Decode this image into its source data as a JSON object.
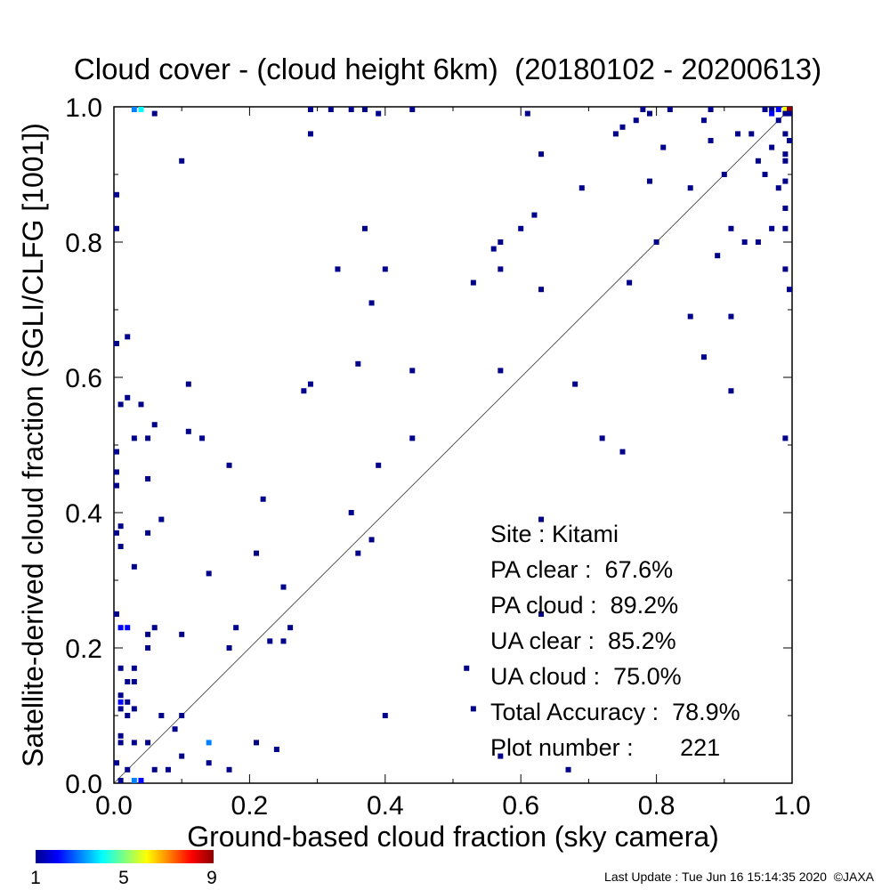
{
  "chart_data": {
    "type": "scatter",
    "title": "Cloud cover - (cloud height 6km)  (20180102 - 20200613)",
    "xlabel": "Ground-based cloud fraction (sky camera)",
    "ylabel": "Satellite-derived cloud fraction (SGLI/CLFG [1001])",
    "xlim": [
      0.0,
      1.0
    ],
    "ylim": [
      0.0,
      1.0
    ],
    "x_ticks": [
      "0.0",
      "0.2",
      "0.4",
      "0.6",
      "0.8",
      "1.0"
    ],
    "y_ticks": [
      "0.0",
      "0.2",
      "0.4",
      "0.6",
      "0.8",
      "1.0"
    ],
    "reference_line": "1:1 diagonal",
    "grid": false,
    "colorbar": {
      "min_label": "1",
      "mid_label": "5",
      "max_label": "9",
      "colors": [
        "#00008b",
        "#0000ff",
        "#0080ff",
        "#00ffff",
        "#80ff80",
        "#ffff00",
        "#ff8000",
        "#ff0000",
        "#8b0000"
      ]
    },
    "stats": [
      {
        "label": "Site : Kitami"
      },
      {
        "label": "PA clear :  67.6%"
      },
      {
        "label": "PA cloud :  89.2%"
      },
      {
        "label": "UA clear :  85.2%"
      },
      {
        "label": "UA cloud :  75.0%"
      },
      {
        "label": "Total Accuracy :  78.9%"
      },
      {
        "label": "Plot number :       221"
      }
    ],
    "points": [
      [
        0.03,
        1.0,
        3
      ],
      [
        0.04,
        1.0,
        4
      ],
      [
        0.06,
        0.99,
        1
      ],
      [
        0.29,
        1.0,
        1
      ],
      [
        0.32,
        1.0,
        1
      ],
      [
        0.35,
        1.0,
        1
      ],
      [
        0.37,
        1.0,
        1
      ],
      [
        0.39,
        0.99,
        1
      ],
      [
        0.44,
        1.0,
        1
      ],
      [
        0.61,
        0.99,
        1
      ],
      [
        0.75,
        0.97,
        1
      ],
      [
        0.77,
        0.98,
        1
      ],
      [
        0.78,
        1.0,
        1
      ],
      [
        0.79,
        0.99,
        1
      ],
      [
        0.82,
        1.0,
        1
      ],
      [
        0.87,
        0.98,
        1
      ],
      [
        0.88,
        1.0,
        1
      ],
      [
        0.96,
        1.0,
        1
      ],
      [
        0.97,
        1.0,
        1
      ],
      [
        0.98,
        1.0,
        2
      ],
      [
        0.99,
        1.0,
        6
      ],
      [
        1.0,
        1.0,
        9
      ],
      [
        0.97,
        0.99,
        2
      ],
      [
        0.98,
        0.98,
        1
      ],
      [
        0.99,
        0.99,
        1
      ],
      [
        1.0,
        0.99,
        1
      ],
      [
        0.92,
        0.96,
        1
      ],
      [
        0.94,
        0.96,
        1
      ],
      [
        0.99,
        0.96,
        1
      ],
      [
        1.0,
        0.95,
        1
      ],
      [
        0.99,
        0.93,
        1
      ],
      [
        0.99,
        0.92,
        1
      ],
      [
        0.97,
        0.94,
        1
      ],
      [
        0.99,
        0.89,
        1
      ],
      [
        0.98,
        0.88,
        1
      ],
      [
        0.96,
        0.9,
        1
      ],
      [
        0.95,
        0.92,
        1
      ],
      [
        0.99,
        0.85,
        1
      ],
      [
        0.99,
        0.82,
        1
      ],
      [
        0.97,
        0.82,
        1
      ],
      [
        0.95,
        0.8,
        1
      ],
      [
        0.99,
        0.76,
        1
      ],
      [
        1.0,
        0.73,
        1
      ],
      [
        0.74,
        0.96,
        1
      ],
      [
        0.81,
        0.94,
        1
      ],
      [
        0.88,
        0.95,
        1
      ],
      [
        0.79,
        0.89,
        1
      ],
      [
        0.85,
        0.88,
        1
      ],
      [
        0.9,
        0.9,
        1
      ],
      [
        0.91,
        0.82,
        1
      ],
      [
        0.93,
        0.8,
        1
      ],
      [
        0.89,
        0.78,
        1
      ],
      [
        0.8,
        0.8,
        1
      ],
      [
        0.85,
        0.69,
        1
      ],
      [
        0.91,
        0.69,
        1
      ],
      [
        0.87,
        0.63,
        1
      ],
      [
        0.91,
        0.58,
        1
      ],
      [
        0.99,
        0.51,
        1
      ],
      [
        0.63,
        0.93,
        1
      ],
      [
        0.69,
        0.88,
        1
      ],
      [
        0.62,
        0.84,
        1
      ],
      [
        0.6,
        0.82,
        1
      ],
      [
        0.57,
        0.8,
        1
      ],
      [
        0.56,
        0.79,
        1
      ],
      [
        0.57,
        0.76,
        1
      ],
      [
        0.53,
        0.74,
        1
      ],
      [
        0.63,
        0.73,
        1
      ],
      [
        0.76,
        0.74,
        1
      ],
      [
        0.57,
        0.61,
        1
      ],
      [
        0.68,
        0.59,
        1
      ],
      [
        0.72,
        0.51,
        1
      ],
      [
        0.75,
        0.49,
        1
      ],
      [
        0.63,
        0.39,
        1
      ],
      [
        0.63,
        0.25,
        1
      ],
      [
        0.57,
        0.04,
        1
      ],
      [
        0.67,
        0.02,
        1
      ],
      [
        0.52,
        0.17,
        1
      ],
      [
        0.53,
        0.11,
        1
      ],
      [
        0.1,
        0.92,
        1
      ],
      [
        0.29,
        0.96,
        1
      ],
      [
        0.37,
        0.82,
        1
      ],
      [
        0.33,
        0.76,
        1
      ],
      [
        0.4,
        0.76,
        1
      ],
      [
        0.38,
        0.71,
        1
      ],
      [
        0.36,
        0.62,
        1
      ],
      [
        0.44,
        0.61,
        1
      ],
      [
        0.28,
        0.58,
        1
      ],
      [
        0.29,
        0.59,
        1
      ],
      [
        0.44,
        0.51,
        1
      ],
      [
        0.39,
        0.47,
        1
      ],
      [
        0.35,
        0.4,
        1
      ],
      [
        0.38,
        0.36,
        1
      ],
      [
        0.36,
        0.34,
        1
      ],
      [
        0.4,
        0.1,
        1
      ],
      [
        0.22,
        0.42,
        1
      ],
      [
        0.17,
        0.47,
        1
      ],
      [
        0.25,
        0.29,
        1
      ],
      [
        0.21,
        0.34,
        1
      ],
      [
        0.18,
        0.23,
        1
      ],
      [
        0.17,
        0.2,
        1
      ],
      [
        0.23,
        0.21,
        1
      ],
      [
        0.25,
        0.21,
        1
      ],
      [
        0.26,
        0.23,
        1
      ],
      [
        0.21,
        0.06,
        1
      ],
      [
        0.24,
        0.05,
        1
      ],
      [
        0.0,
        0.87,
        1
      ],
      [
        0.0,
        0.82,
        1
      ],
      [
        0.0,
        0.65,
        1
      ],
      [
        0.02,
        0.66,
        1
      ],
      [
        0.11,
        0.59,
        1
      ],
      [
        0.02,
        0.57,
        1
      ],
      [
        0.01,
        0.56,
        1
      ],
      [
        0.04,
        0.56,
        1
      ],
      [
        0.06,
        0.53,
        1
      ],
      [
        0.11,
        0.52,
        1
      ],
      [
        0.03,
        0.51,
        1
      ],
      [
        0.05,
        0.51,
        1
      ],
      [
        0.13,
        0.51,
        1
      ],
      [
        0.0,
        0.49,
        1
      ],
      [
        0.0,
        0.46,
        1
      ],
      [
        0.0,
        0.44,
        1
      ],
      [
        0.05,
        0.45,
        1
      ],
      [
        0.07,
        0.39,
        1
      ],
      [
        0.0,
        0.37,
        1
      ],
      [
        0.01,
        0.38,
        1
      ],
      [
        0.05,
        0.37,
        1
      ],
      [
        0.01,
        0.35,
        1
      ],
      [
        0.03,
        0.32,
        1
      ],
      [
        0.14,
        0.31,
        1
      ],
      [
        0.0,
        0.25,
        1
      ],
      [
        0.01,
        0.23,
        2
      ],
      [
        0.02,
        0.23,
        2
      ],
      [
        0.06,
        0.23,
        1
      ],
      [
        0.05,
        0.22,
        1
      ],
      [
        0.05,
        0.2,
        1
      ],
      [
        0.1,
        0.22,
        1
      ],
      [
        0.01,
        0.17,
        1
      ],
      [
        0.03,
        0.17,
        1
      ],
      [
        0.02,
        0.15,
        1
      ],
      [
        0.03,
        0.15,
        1
      ],
      [
        0.01,
        0.13,
        1
      ],
      [
        0.01,
        0.12,
        2
      ],
      [
        0.02,
        0.12,
        1
      ],
      [
        0.01,
        0.11,
        1
      ],
      [
        0.03,
        0.11,
        1
      ],
      [
        0.02,
        0.1,
        1
      ],
      [
        0.07,
        0.1,
        1
      ],
      [
        0.1,
        0.1,
        1
      ],
      [
        0.09,
        0.08,
        1
      ],
      [
        0.01,
        0.07,
        1
      ],
      [
        0.01,
        0.06,
        1
      ],
      [
        0.03,
        0.06,
        1
      ],
      [
        0.05,
        0.06,
        1
      ],
      [
        0.14,
        0.06,
        3
      ],
      [
        0.0,
        0.03,
        1
      ],
      [
        0.1,
        0.04,
        1
      ],
      [
        0.14,
        0.03,
        1
      ],
      [
        0.02,
        0.02,
        1
      ],
      [
        0.06,
        0.02,
        1
      ],
      [
        0.08,
        0.02,
        1
      ],
      [
        0.17,
        0.02,
        1
      ],
      [
        0.01,
        0.0,
        1
      ],
      [
        0.03,
        0.0,
        3
      ],
      [
        0.04,
        0.0,
        2
      ]
    ]
  },
  "footer": {
    "last_update": "Last Update : Tue Jun 16 15:14:35 2020  ©JAXA"
  }
}
